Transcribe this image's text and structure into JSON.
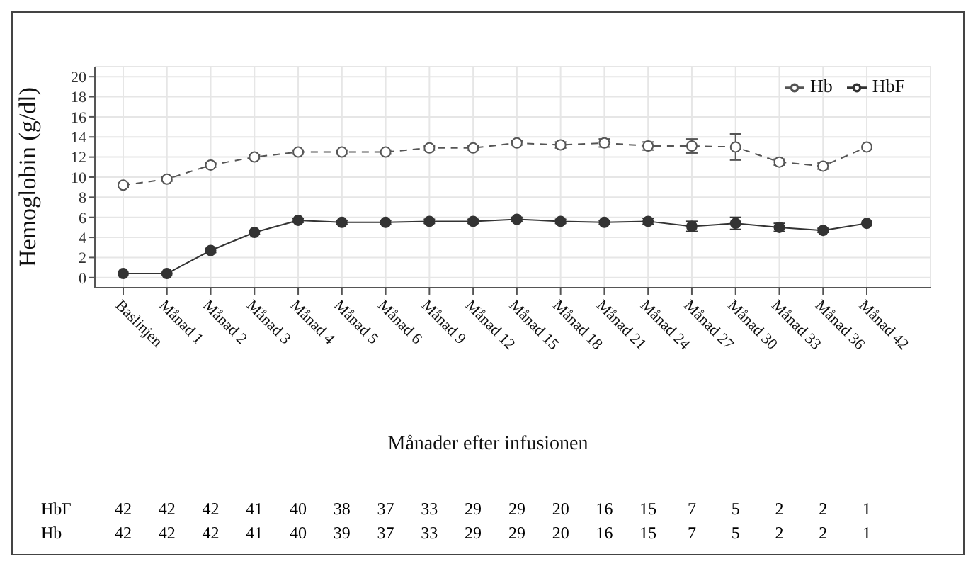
{
  "chart_data": {
    "type": "line",
    "xlabel": "Månader efter infusionen",
    "ylabel": "Hemoglobin (g/dl)",
    "categories": [
      "Baslinjen",
      "Månad 1",
      "Månad 2",
      "Månad 3",
      "Månad 4",
      "Månad 5",
      "Månad 6",
      "Månad 9",
      "Månad 12",
      "Månad 15",
      "Månad 18",
      "Månad 21",
      "Månad 24",
      "Månad 27",
      "Månad 30",
      "Månad 33",
      "Månad 36",
      "Månad 42"
    ],
    "ylim": [
      -1,
      21
    ],
    "yticks": [
      0,
      2,
      4,
      6,
      8,
      10,
      12,
      14,
      16,
      18,
      20
    ],
    "grid": true,
    "legend": "top right",
    "marker": "circle",
    "series": [
      {
        "name": "Hb",
        "color": "#555555",
        "line_style": "dashed",
        "values": [
          9.2,
          9.8,
          11.2,
          12.0,
          12.5,
          12.5,
          12.5,
          12.9,
          12.9,
          13.4,
          13.2,
          13.4,
          13.1,
          13.1,
          13.0,
          11.5,
          11.1,
          13.0
        ],
        "errors": [
          0.2,
          0.2,
          0.2,
          0.2,
          0.2,
          0.2,
          0.2,
          0.2,
          0.2,
          0.2,
          0.3,
          0.4,
          0.4,
          0.7,
          1.3,
          0.3,
          0.3,
          null
        ]
      },
      {
        "name": "HbF",
        "color": "#333333",
        "line_style": "solid",
        "values": [
          0.4,
          0.4,
          2.7,
          4.5,
          5.7,
          5.5,
          5.5,
          5.6,
          5.6,
          5.8,
          5.6,
          5.5,
          5.6,
          5.1,
          5.4,
          5.0,
          4.7,
          5.4
        ],
        "errors": [
          null,
          null,
          0.2,
          0.2,
          0.2,
          0.2,
          0.2,
          0.2,
          0.2,
          0.2,
          0.2,
          0.2,
          0.3,
          0.5,
          0.6,
          0.4,
          0.2,
          null
        ]
      }
    ],
    "annotations": [
      "HbF",
      "42",
      "42",
      "42",
      "41",
      "40",
      "38",
      "37",
      "33",
      "29",
      "29",
      "20",
      "16",
      "15",
      "7",
      "5",
      "2",
      "2",
      "1",
      "Hb",
      "42",
      "42",
      "42",
      "41",
      "40",
      "39",
      "37",
      "33",
      "29",
      "29",
      "20",
      "16",
      "15",
      "7",
      "5",
      "2",
      "2",
      "1"
    ]
  }
}
